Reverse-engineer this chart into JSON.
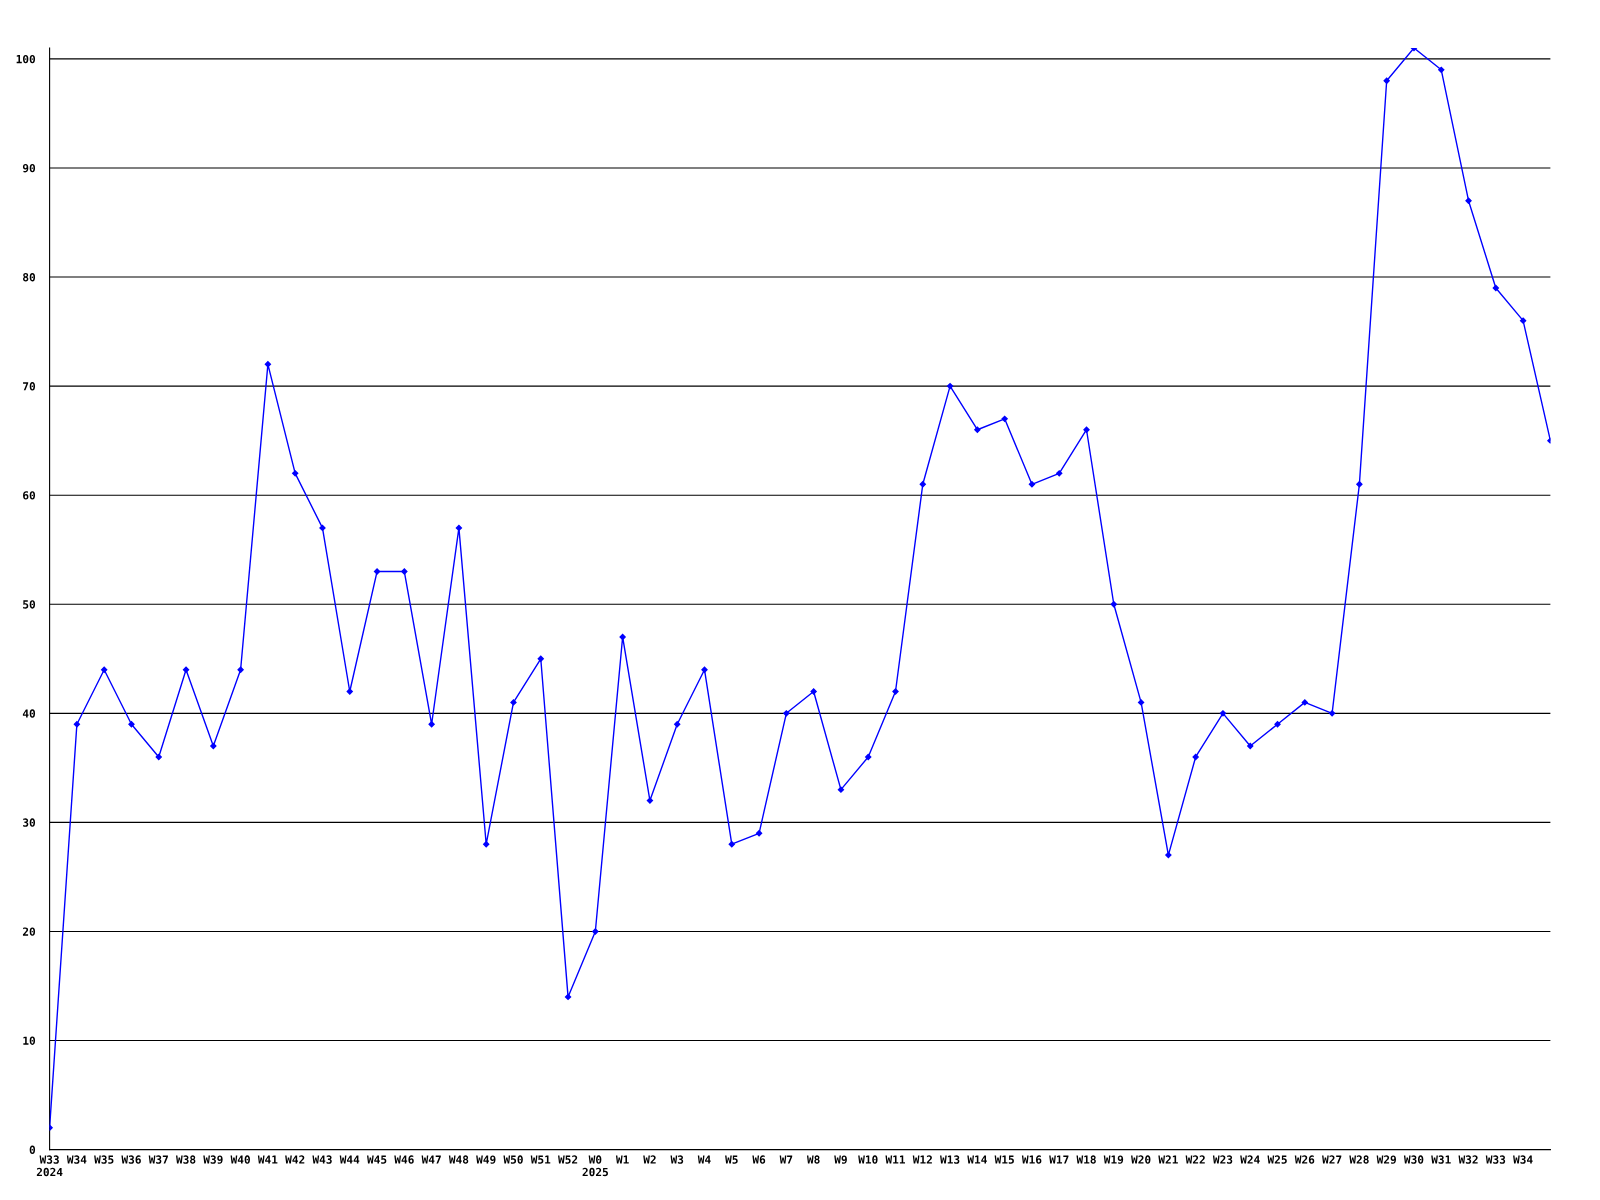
{
  "chart_data": {
    "type": "line",
    "categories": [
      "W33\n2024",
      "W34",
      "W35",
      "W36",
      "W37",
      "W38",
      "W39",
      "W40",
      "W41",
      "W42",
      "W43",
      "W44",
      "W45",
      "W46",
      "W47",
      "W48",
      "W49",
      "W50",
      "W51",
      "W52",
      "W0\n2025",
      "W1",
      "W2",
      "W3",
      "W4",
      "W5",
      "W6",
      "W7",
      "W8",
      "W9",
      "W10",
      "W11",
      "W12",
      "W13",
      "W14",
      "W15",
      "W16",
      "W17",
      "W18",
      "W19",
      "W20",
      "W21",
      "W22",
      "W23",
      "W24",
      "W25",
      "W26",
      "W27",
      "W28",
      "W29",
      "W30",
      "W31",
      "W32",
      "W33",
      "W34",
      null
    ],
    "series": [
      {
        "color": "#0000ff",
        "values": [
          2,
          39,
          44,
          39,
          36,
          44,
          37,
          44,
          72,
          62,
          57,
          42,
          53,
          53,
          39,
          57,
          28,
          41,
          45,
          14,
          20,
          47,
          32,
          39,
          44,
          28,
          29,
          40,
          42,
          33,
          36,
          42,
          61,
          70,
          66,
          67,
          61,
          62,
          66,
          50,
          41,
          27,
          36,
          40,
          37,
          39,
          41,
          40,
          61,
          98,
          101,
          99,
          87,
          79,
          76,
          65
        ]
      }
    ],
    "ylim": [
      0,
      101
    ],
    "yticks": [
      0,
      10,
      20,
      30,
      40,
      50,
      60,
      70,
      80,
      90,
      100
    ],
    "grid": "y",
    "marker": "diamond",
    "line_style": "solid",
    "legend": false
  }
}
